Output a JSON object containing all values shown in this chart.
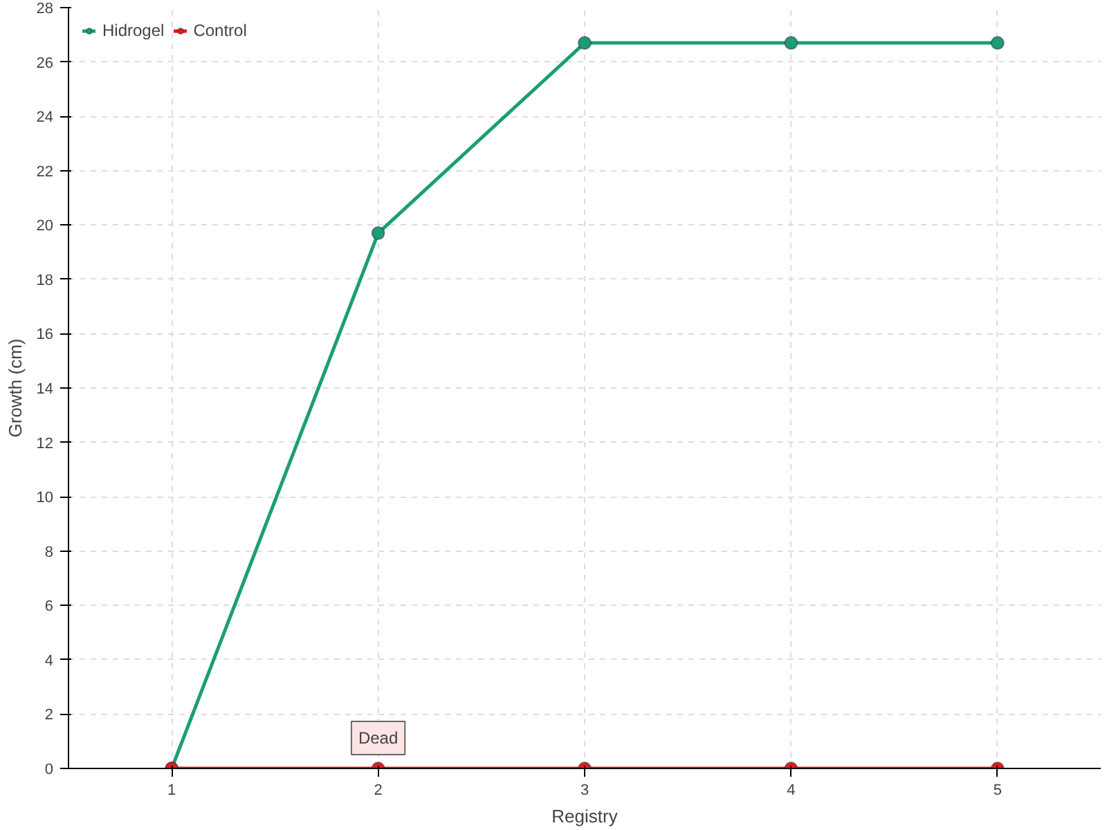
{
  "chart_data": {
    "type": "line",
    "xlabel": "Registry",
    "ylabel": "Growth (cm)",
    "x": [
      1,
      2,
      3,
      4,
      5
    ],
    "series": [
      {
        "name": "Hidrogel",
        "color": "#1b9e77",
        "values": [
          0,
          19.7,
          26.7,
          26.7,
          26.7
        ]
      },
      {
        "name": "Control",
        "color": "#e41a1c",
        "values": [
          0,
          0,
          0,
          0,
          0
        ]
      }
    ],
    "xlim": [
      0.5,
      5.5
    ],
    "xticks": [
      1,
      2,
      3,
      4,
      5
    ],
    "ylim": [
      0,
      28
    ],
    "yticks": [
      0,
      2,
      4,
      6,
      8,
      10,
      12,
      14,
      16,
      18,
      20,
      22,
      24,
      26,
      28
    ],
    "annotations": [
      {
        "text": "Dead",
        "x": 2,
        "y": 0
      }
    ],
    "grid": true,
    "legend": "top left",
    "marker": "circle",
    "line_style": "solid"
  }
}
